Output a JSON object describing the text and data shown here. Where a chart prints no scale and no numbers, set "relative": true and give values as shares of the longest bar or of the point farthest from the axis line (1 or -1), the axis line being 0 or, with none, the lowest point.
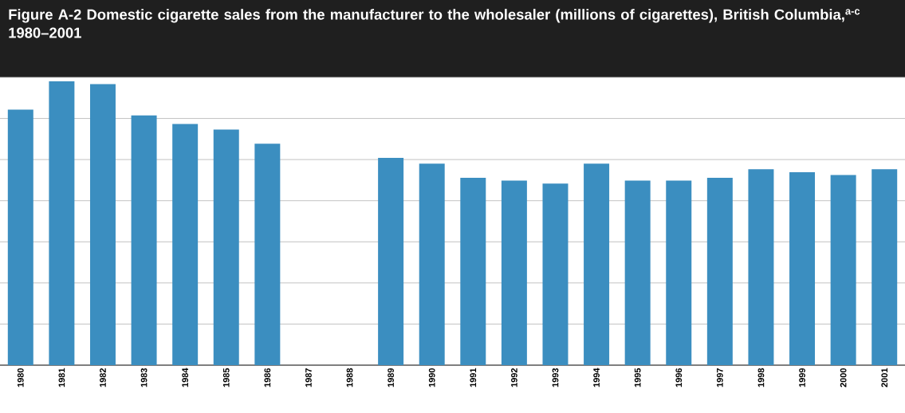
{
  "chart_data": {
    "type": "bar",
    "title": "Figure A-2  Domestic cigarette sales from the manufacturer to the wholesaler (millions of cigarettes), British Columbia,$^{a-c}$ 1980–2001",
    "relative": true,
    "categories": [
      "1980",
      "1981",
      "1982",
      "1983",
      "1984",
      "1985",
      "1986",
      "1987",
      "1988",
      "1989",
      "1990",
      "1991",
      "1992",
      "1993",
      "1994",
      "1995",
      "1996",
      "1997",
      "1998",
      "1999",
      "2000",
      "2001"
    ],
    "values": [
      0.9,
      1,
      0.99,
      0.88,
      0.85,
      0.83,
      0.78,
      null,
      null,
      0.73,
      0.71,
      0.66,
      0.65,
      0.64,
      0.71,
      0.65,
      0.65,
      0.66,
      0.69,
      0.68,
      0.67,
      0.69
    ],
    "color": "#3b8ec0",
    "grid": "y"
  }
}
